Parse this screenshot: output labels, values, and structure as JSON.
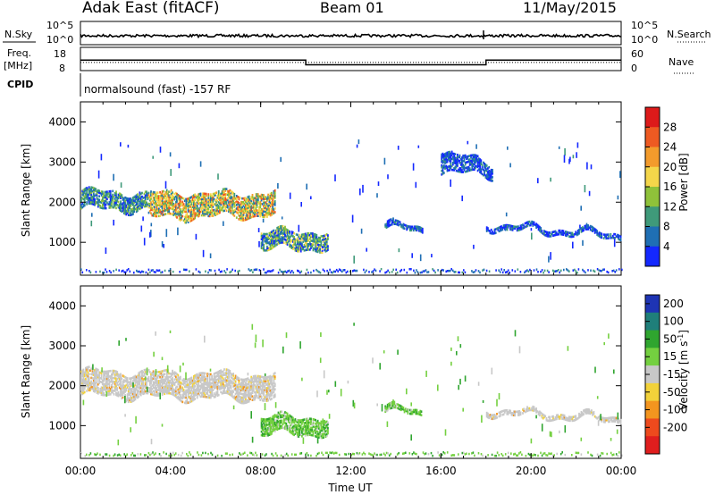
{
  "header": {
    "title": "Adak East (fitACF)",
    "beam": "Beam 01",
    "date": "11/May/2015"
  },
  "aux": {
    "nsky_label": "N.Sky",
    "nsearch_label": "N.Search",
    "nsky_ticks": [
      "10^5",
      "10^0"
    ],
    "nsearch_ticks": [
      "10^5",
      "10^0"
    ],
    "freq_label": "Freq.",
    "freq_unit": "[MHz]",
    "freq_ticks": [
      "18",
      "8"
    ],
    "nave_label": "Nave",
    "nave_ticks": [
      "60",
      "0"
    ],
    "cpid_label": "CPID",
    "cpid_text": "normalsound (fast) -157 RF"
  },
  "chart_data": [
    {
      "type": "line",
      "panel": "frequency",
      "ylim": [
        8,
        18
      ],
      "x_hours": [
        0,
        10,
        10,
        18,
        18,
        24
      ],
      "values_mhz": [
        12.5,
        12.5,
        10.5,
        10.5,
        12.5,
        12.5
      ],
      "nave_ylim": [
        0,
        60
      ],
      "nave_value": 21
    },
    {
      "type": "heatmap",
      "panel": "power",
      "ylabel": "Slant Range [km]",
      "yticks": [
        "4000",
        "3000",
        "2000",
        "1000"
      ],
      "ylim": [
        180,
        4500
      ],
      "colorbar_label": "Power [dB]",
      "colorbar_ticks": [
        "28",
        "24",
        "20",
        "16",
        "12",
        "8",
        "4"
      ],
      "colorbar_colors": [
        "#1428ff",
        "#1f6fb4",
        "#3f9a7a",
        "#8fc23a",
        "#f4d64a",
        "#f39b2c",
        "#ee5a22",
        "#dd1a1a"
      ],
      "echo_regions": [
        {
          "t": [
            0.0,
            3.0
          ],
          "r_center": [
            2050,
            2000
          ],
          "r_half": [
            220,
            200
          ],
          "value": "low-mid"
        },
        {
          "t": [
            3.0,
            8.6
          ],
          "r_center": [
            1900,
            1950
          ],
          "r_half": [
            300,
            280
          ],
          "value": "mid-high"
        },
        {
          "t": [
            8.0,
            11.0
          ],
          "r_center": [
            1050,
            1050
          ],
          "r_half": [
            220,
            220
          ],
          "value": "mid"
        },
        {
          "t": [
            13.5,
            15.2
          ],
          "r_center": [
            1450,
            1250
          ],
          "r_half": [
            70,
            60
          ],
          "value": "low"
        },
        {
          "t": [
            16.0,
            18.3
          ],
          "r_center": [
            3000,
            2800
          ],
          "r_half": [
            250,
            150
          ],
          "value": "low"
        },
        {
          "t": [
            18.0,
            24.0
          ],
          "r_center": [
            1400,
            1150
          ],
          "r_half": [
            50,
            50
          ],
          "value": "low"
        }
      ]
    },
    {
      "type": "heatmap",
      "panel": "velocity",
      "ylabel": "Slant Range [km]",
      "yticks": [
        "4000",
        "3000",
        "2000",
        "1000"
      ],
      "ylim": [
        180,
        4500
      ],
      "colorbar_label": "Velocity [m s^-1]",
      "colorbar_ticks": [
        "200",
        "100",
        "50",
        "15",
        "-15",
        "-50",
        "-100",
        "-200"
      ],
      "colorbar_colors": [
        "#1e34b4",
        "#1f7f7a",
        "#2fa52f",
        "#74d040",
        "#c8c8c8",
        "#f2d23a",
        "#f3951f",
        "#ee4a1d",
        "#e01e1e"
      ],
      "echo_regions": [
        {
          "t": [
            0.0,
            8.6
          ],
          "r_center": [
            2050,
            1950
          ],
          "r_half": [
            300,
            300
          ],
          "value": "-15..15"
        },
        {
          "t": [
            8.0,
            11.0
          ],
          "r_center": [
            1000,
            1000
          ],
          "r_half": [
            220,
            220
          ],
          "value": "15..50"
        },
        {
          "t": [
            13.5,
            15.2
          ],
          "r_center": [
            1450,
            1250
          ],
          "r_half": [
            70,
            60
          ],
          "value": "15..50"
        },
        {
          "t": [
            18.0,
            24.0
          ],
          "r_center": [
            1350,
            1150
          ],
          "r_half": [
            50,
            50
          ],
          "value": "-15..15"
        }
      ]
    }
  ],
  "time_axis": {
    "xlabel": "Time UT",
    "ticks": [
      "00:00",
      "04:00",
      "08:00",
      "12:00",
      "16:00",
      "20:00",
      "00:00"
    ]
  }
}
